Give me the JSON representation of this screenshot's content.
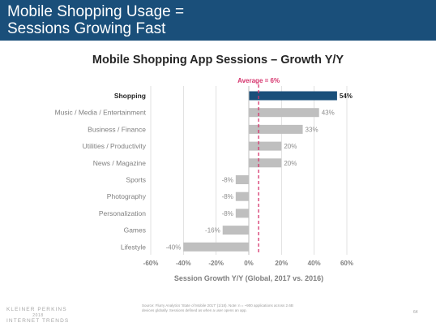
{
  "slide": {
    "title_line1": "Mobile Shopping Usage =",
    "title_line2": "Sessions Growing Fast",
    "footer_logo_line1": "KLEINER PERKINS",
    "footer_logo_line2": "2018",
    "footer_logo_line3": "INTERNET TRENDS",
    "source_text": "Source: Flurry Analytics 'State of Mobile 2017' (1/18). Note: n = ~900 applications across 2.6B devices globally. Sessions defined as when a user opens an app.",
    "page_number": "64",
    "colors": {
      "header_bg": "#1a4f7a",
      "highlight_bar": "#1a4f7a",
      "other_bars": "#bfbfbf",
      "average_line": "#d6336c"
    }
  },
  "chart_data": {
    "type": "bar",
    "orientation": "horizontal",
    "title": "Mobile Shopping App Sessions – Growth Y/Y",
    "xlabel": "Session Growth Y/Y (Global, 2017 vs. 2016)",
    "ylabel": "",
    "categories": [
      "Shopping",
      "Music / Media / Entertainment",
      "Business / Finance",
      "Utilities / Productivity",
      "News / Magazine",
      "Sports",
      "Photography",
      "Personalization",
      "Games",
      "Lifestyle"
    ],
    "values": [
      54,
      43,
      33,
      20,
      20,
      -8,
      -8,
      -8,
      -16,
      -40
    ],
    "value_labels": [
      "54%",
      "43%",
      "33%",
      "20%",
      "20%",
      "-8%",
      "-8%",
      "-8%",
      "-16%",
      "-40%"
    ],
    "highlight_category": "Shopping",
    "xlim": [
      -60,
      60
    ],
    "xticks": [
      -60,
      -40,
      -20,
      0,
      20,
      40,
      60
    ],
    "xtick_labels": [
      "-60%",
      "-40%",
      "-20%",
      "0%",
      "20%",
      "40%",
      "60%"
    ],
    "grid": true,
    "average": {
      "value": 6,
      "label": "Average = 6%"
    }
  }
}
